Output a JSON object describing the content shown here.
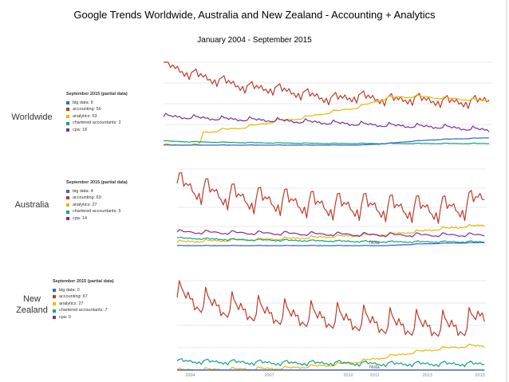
{
  "title": "Google Trends Worldwide, Australia and New Zealand - Accounting + Analytics",
  "subtitle": "January 2004 - September 2015",
  "colors": {
    "big data": "#3366cc",
    "accounting": "#c0392b",
    "analytics": "#e6b800",
    "chartered accountants": "#16a085",
    "cpa": "#7b2d9e"
  },
  "chart_data": [
    {
      "type": "line",
      "row_label": "Worldwide",
      "legend_title": "September 2015 (partial data)",
      "legend": [
        "big data: 9",
        "accounting: 56",
        "analytics: 53",
        "chartered accountants: 2",
        "cpa: 18"
      ],
      "x_range": [
        2004,
        2015.75
      ],
      "ylim": [
        0,
        100
      ],
      "grid": true,
      "series": [
        {
          "name": "accounting",
          "key": "accounting",
          "points": [
            [
              2004,
              98
            ],
            [
              2005,
              86
            ],
            [
              2006,
              78
            ],
            [
              2007,
              70
            ],
            [
              2008,
              68
            ],
            [
              2009,
              62
            ],
            [
              2010,
              56
            ],
            [
              2011,
              59
            ],
            [
              2012,
              55
            ],
            [
              2013,
              56
            ],
            [
              2014,
              53
            ],
            [
              2015,
              52
            ],
            [
              2015.75,
              56
            ]
          ],
          "seasonal": 7
        },
        {
          "name": "analytics",
          "key": "analytics",
          "points": [
            [
              2004,
              0
            ],
            [
              2005.3,
              0
            ],
            [
              2005.4,
              15
            ],
            [
              2006,
              18
            ],
            [
              2007,
              22
            ],
            [
              2008,
              29
            ],
            [
              2009,
              33
            ],
            [
              2010,
              40
            ],
            [
              2011,
              46
            ],
            [
              2012,
              57
            ],
            [
              2013,
              59
            ],
            [
              2014,
              57
            ],
            [
              2015,
              55
            ],
            [
              2015.75,
              53
            ]
          ],
          "seasonal": 2
        },
        {
          "name": "cpa",
          "key": "cpa",
          "points": [
            [
              2004,
              35
            ],
            [
              2006,
              32
            ],
            [
              2008,
              30
            ],
            [
              2010,
              27
            ],
            [
              2012,
              24
            ],
            [
              2014,
              22
            ],
            [
              2015.75,
              18
            ]
          ],
          "seasonal": 3
        },
        {
          "name": "chartered accountants",
          "key": "chartered accountants",
          "points": [
            [
              2004,
              5
            ],
            [
              2005,
              4
            ],
            [
              2007,
              3
            ],
            [
              2010,
              2
            ],
            [
              2015.75,
              2
            ]
          ],
          "seasonal": 0.5
        },
        {
          "name": "big data",
          "key": "big data",
          "points": [
            [
              2004,
              0
            ],
            [
              2011,
              0
            ],
            [
              2012,
              2
            ],
            [
              2013,
              5
            ],
            [
              2014,
              7
            ],
            [
              2015.75,
              9
            ]
          ],
          "seasonal": 0.4
        }
      ]
    },
    {
      "type": "line",
      "row_label": "Australia",
      "legend_title": "September 2015 (partial data)",
      "legend": [
        "big data: 4",
        "accounting: 69",
        "analytics: 27",
        "chartered accountants: 5",
        "cpa: 14"
      ],
      "x_range": [
        2004,
        2015.75
      ],
      "ylim": [
        0,
        100
      ],
      "grid": true,
      "note": "Nota",
      "series": [
        {
          "name": "accounting",
          "key": "accounting",
          "points": [
            [
              2004,
              80
            ],
            [
              2005,
              72
            ],
            [
              2006,
              65
            ],
            [
              2007,
              60
            ],
            [
              2008,
              58
            ],
            [
              2009,
              55
            ],
            [
              2010,
              52
            ],
            [
              2011,
              52
            ],
            [
              2012,
              50
            ],
            [
              2013,
              49
            ],
            [
              2014,
              48
            ],
            [
              2015,
              52
            ],
            [
              2015.75,
              69
            ]
          ],
          "seasonal": 20
        },
        {
          "name": "analytics",
          "key": "analytics",
          "points": [
            [
              2004,
              5
            ],
            [
              2006,
              7
            ],
            [
              2008,
              9
            ],
            [
              2010,
              12
            ],
            [
              2012,
              15
            ],
            [
              2013,
              18
            ],
            [
              2014,
              22
            ],
            [
              2015,
              25
            ],
            [
              2015.75,
              27
            ]
          ],
          "seasonal": 2
        },
        {
          "name": "cpa",
          "key": "cpa",
          "points": [
            [
              2004,
              18
            ],
            [
              2006,
              17
            ],
            [
              2008,
              16
            ],
            [
              2010,
              15
            ],
            [
              2012,
              14
            ],
            [
              2014,
              14
            ],
            [
              2015.75,
              14
            ]
          ],
          "seasonal": 3
        },
        {
          "name": "chartered accountants",
          "key": "chartered accountants",
          "points": [
            [
              2004,
              10
            ],
            [
              2006,
              8
            ],
            [
              2008,
              7
            ],
            [
              2010,
              6
            ],
            [
              2012,
              5
            ],
            [
              2015.75,
              5
            ]
          ],
          "seasonal": 1.2
        },
        {
          "name": "big data",
          "key": "big data",
          "points": [
            [
              2004,
              0
            ],
            [
              2012,
              0
            ],
            [
              2013,
              2
            ],
            [
              2014,
              3
            ],
            [
              2015.75,
              4
            ]
          ],
          "seasonal": 0.4
        }
      ]
    },
    {
      "type": "line",
      "row_label": "New Zealand",
      "legend_title": "September 2015 (partial data)",
      "legend": [
        "big data: 0",
        "accounting: 67",
        "analytics: 27",
        "chartered accountants: 7",
        "cpa: 0"
      ],
      "x_range": [
        2004,
        2015.75
      ],
      "ylim": [
        0,
        100
      ],
      "grid": true,
      "note": "Nota",
      "x_ticks": [
        "2004",
        "2007",
        "2010",
        "2011",
        "2013",
        "2015"
      ],
      "series": [
        {
          "name": "accounting",
          "key": "accounting",
          "points": [
            [
              2004,
              85
            ],
            [
              2005,
              75
            ],
            [
              2006,
              70
            ],
            [
              2007,
              66
            ],
            [
              2008,
              62
            ],
            [
              2009,
              60
            ],
            [
              2010,
              58
            ],
            [
              2011,
              55
            ],
            [
              2012,
              52
            ],
            [
              2013,
              50
            ],
            [
              2014,
              49
            ],
            [
              2015,
              50
            ],
            [
              2015.75,
              67
            ]
          ],
          "seasonal": 17
        },
        {
          "name": "analytics",
          "key": "analytics",
          "points": [
            [
              2004,
              0
            ],
            [
              2008,
              2
            ],
            [
              2010,
              6
            ],
            [
              2011,
              10
            ],
            [
              2012,
              15
            ],
            [
              2013,
              20
            ],
            [
              2014,
              24
            ],
            [
              2015,
              27
            ],
            [
              2015.75,
              27
            ]
          ],
          "seasonal": 2
        },
        {
          "name": "chartered accountants",
          "key": "chartered accountants",
          "points": [
            [
              2004,
              10
            ],
            [
              2006,
              9
            ],
            [
              2008,
              8
            ],
            [
              2010,
              8
            ],
            [
              2012,
              7
            ],
            [
              2015.75,
              7
            ]
          ],
          "seasonal": 3
        },
        {
          "name": "cpa",
          "key": "cpa",
          "points": [
            [
              2004,
              0
            ],
            [
              2015.75,
              0
            ]
          ],
          "seasonal": 0
        },
        {
          "name": "big data",
          "key": "big data",
          "points": [
            [
              2004,
              0
            ],
            [
              2015.75,
              0
            ]
          ],
          "seasonal": 0
        }
      ]
    }
  ]
}
